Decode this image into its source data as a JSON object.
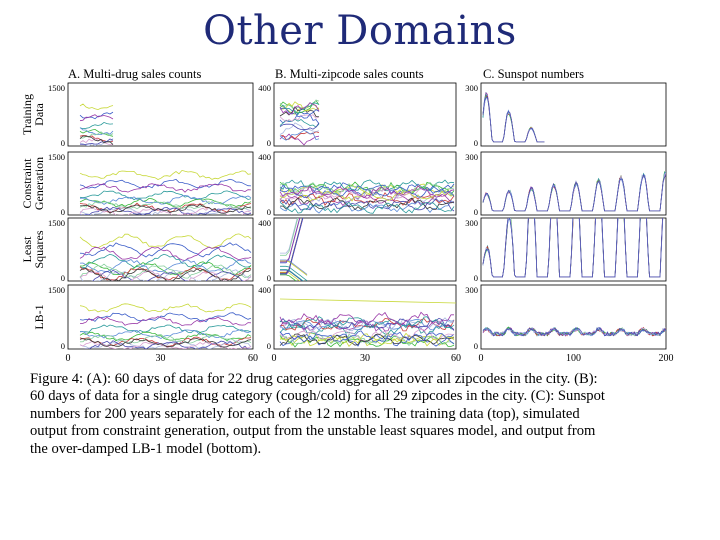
{
  "slide": {
    "title": "Other Domains"
  },
  "figure": {
    "column_titles": [
      "A.   Multi-drug sales counts",
      "B.  Multi-zipcode sales counts",
      "C.     Sunspot numbers"
    ],
    "row_labels": [
      [
        "Training",
        "Data"
      ],
      [
        "Constraint",
        "Generation"
      ],
      [
        "Least",
        "Squares"
      ],
      [
        "LB-1"
      ]
    ],
    "y_ticks": [
      [
        "1500",
        "0"
      ],
      [
        "400",
        "0"
      ],
      [
        "300",
        "0"
      ]
    ],
    "x_ticks": [
      [
        "0",
        "30",
        "60"
      ],
      [
        "0",
        "30",
        "60"
      ],
      [
        "0",
        "100",
        "200"
      ]
    ]
  },
  "chart_data": {
    "type": "line",
    "panels_grid": "4 rows x 3 columns of small multiples (shared axes per column)",
    "columns": [
      {
        "name": "Multi-drug sales counts",
        "xlim": [
          0,
          60
        ],
        "ylim": [
          0,
          1500
        ],
        "series_count": 22
      },
      {
        "name": "Multi-zipcode sales counts",
        "xlim": [
          0,
          60
        ],
        "ylim": [
          0,
          400
        ],
        "series_count": 29
      },
      {
        "name": "Sunspot numbers",
        "xlim": [
          0,
          200
        ],
        "ylim": [
          0,
          300
        ],
        "series_count": 12
      }
    ],
    "rows": [
      "Training Data",
      "Constraint Generation",
      "Least Squares",
      "LB-1"
    ],
    "colors": [
      "#c8d83a",
      "#3a5cc8",
      "#2a9a9a",
      "#9a3aa8",
      "#3ab83a",
      "#c83a3a",
      "#5a8ad8",
      "#aab8e0",
      "#4a4ab0",
      "#8ad0a0",
      "#d8a0d0",
      "#3a3a3a"
    ],
    "grid": false
  },
  "caption": {
    "lines": [
      "Figure 4:  (A): 60 days of data for 22 drug categories aggregated over all zipcodes in the city.  (B):",
      "60 days of data for a single drug category (cough/cold) for all 29 zipcodes in the city.  (C): Sunspot",
      "numbers for 200 years separately for each of the 12 months.  The training data (top), simulated",
      "output from constraint generation, output from the unstable least squares model, and output from",
      "the over-damped LB-1 model (bottom)."
    ]
  }
}
